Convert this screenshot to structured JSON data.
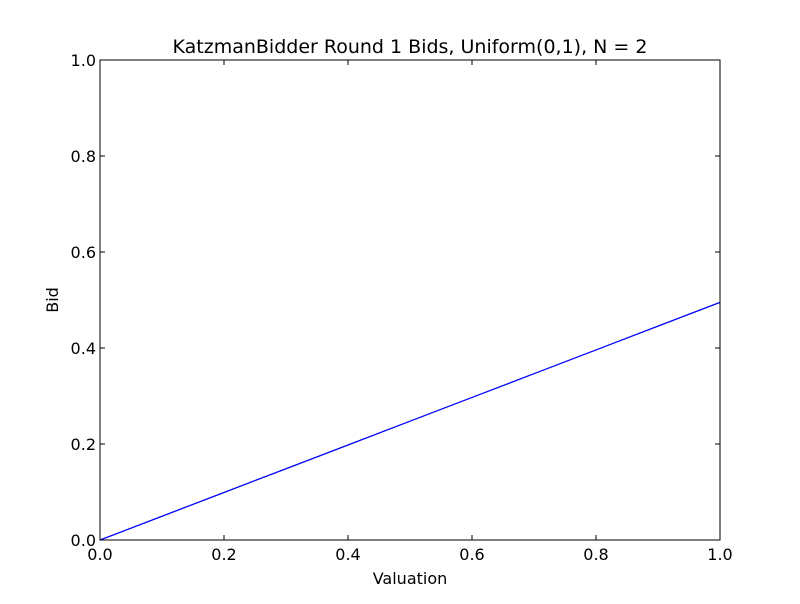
{
  "chart_data": {
    "type": "line",
    "title": "KatzmanBidder Round 1 Bids, Uniform(0,1), N = 2",
    "xlabel": "Valuation",
    "ylabel": "Bid",
    "xlim": [
      0.0,
      1.0
    ],
    "ylim": [
      0.0,
      1.0
    ],
    "xticks": [
      "0.0",
      "0.2",
      "0.4",
      "0.6",
      "0.8",
      "1.0"
    ],
    "yticks": [
      "0.0",
      "0.2",
      "0.4",
      "0.6",
      "0.8",
      "1.0"
    ],
    "grid": false,
    "series": [
      {
        "color": "#0000ff",
        "x": [
          0.0,
          0.1,
          0.2,
          0.3,
          0.4,
          0.5,
          0.6,
          0.7,
          0.8,
          0.9,
          1.0
        ],
        "y": [
          0.0,
          0.0495,
          0.099,
          0.1485,
          0.198,
          0.2475,
          0.297,
          0.3465,
          0.396,
          0.4455,
          0.495
        ]
      }
    ]
  }
}
